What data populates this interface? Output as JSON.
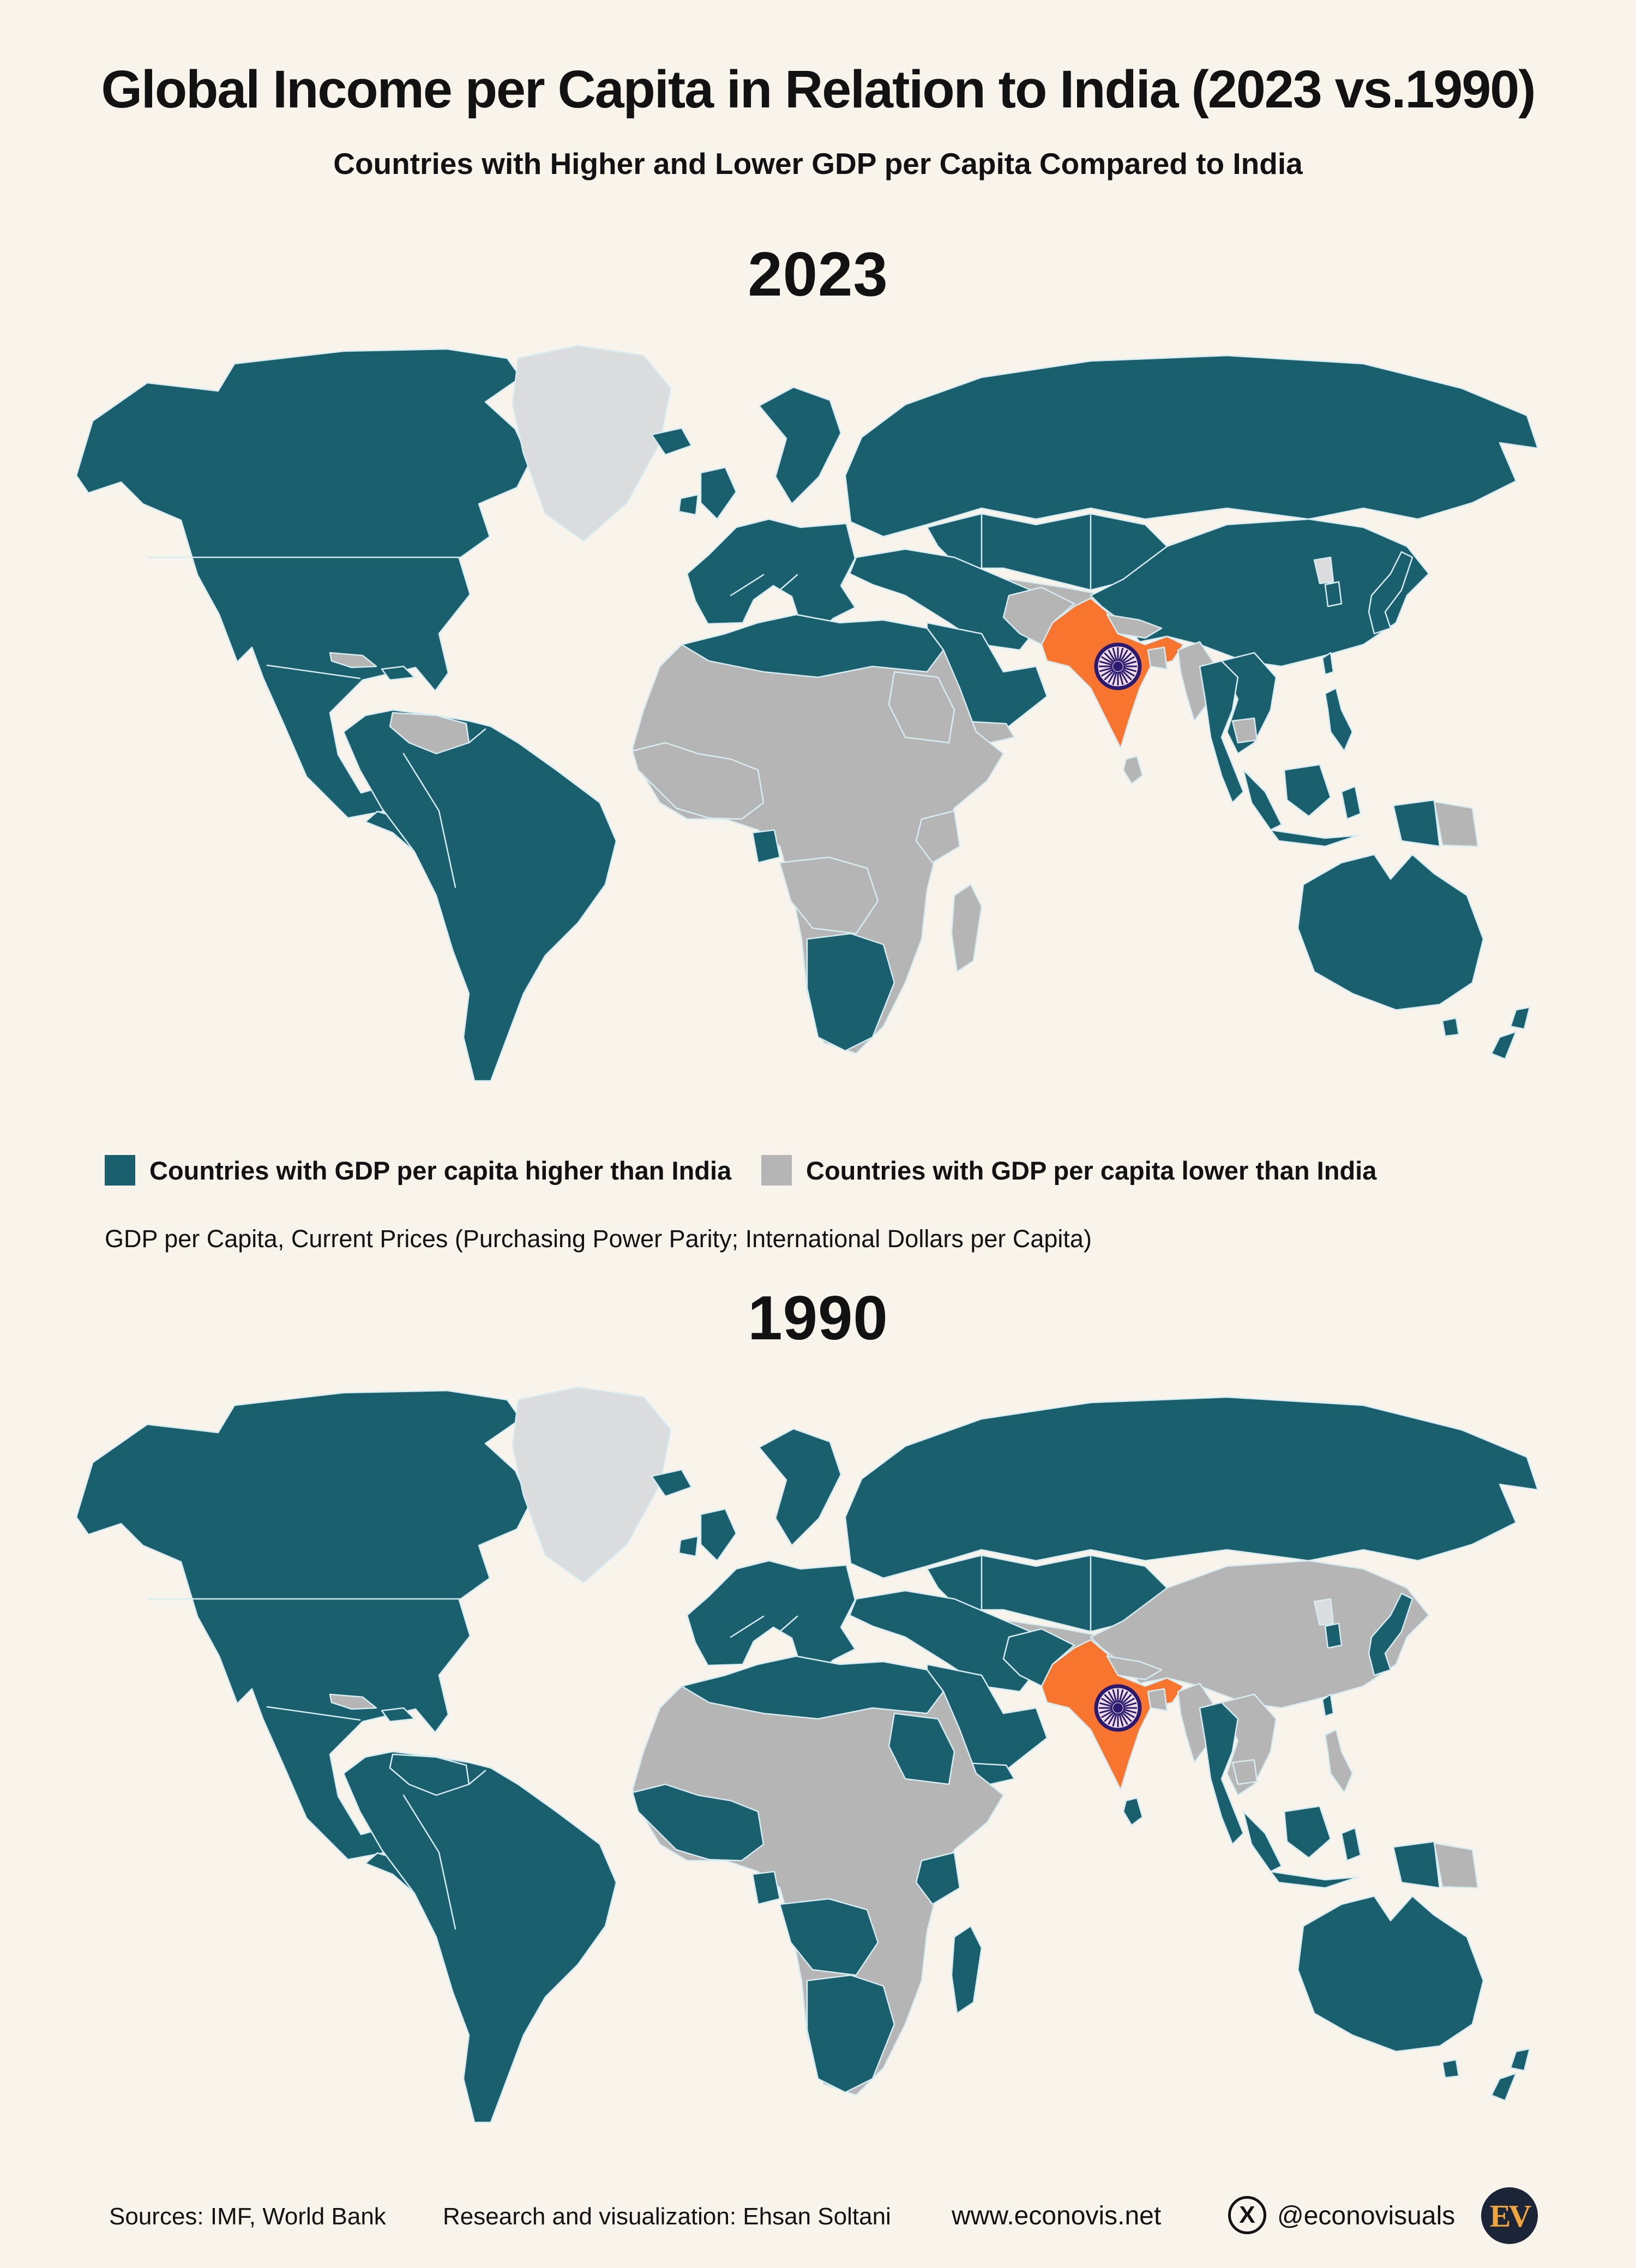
{
  "header": {
    "title": "Global Income per Capita in Relation to India (2023 vs.1990)",
    "subtitle": "Countries with Higher and Lower GDP per Capita Compared to India"
  },
  "sections": [
    {
      "year_label": "2023"
    },
    {
      "year_label": "1990"
    }
  ],
  "legend": {
    "items": [
      {
        "key": "higher",
        "label": "Countries with GDP per capita higher than India"
      },
      {
        "key": "lower",
        "label": "Countries with GDP per capita lower than India"
      }
    ],
    "note": "GDP per Capita, Current Prices (Purchasing Power Parity; International Dollars per Capita)"
  },
  "footer": {
    "sources": "Sources: IMF, World Bank",
    "credit": "Research and visualization: Ehsan Soltani",
    "website": "www.econovis.net",
    "social_icon": "X",
    "social_handle": "@econovisuals",
    "logo_text": "EV"
  },
  "theme": {
    "background": "#F8F4EB",
    "text": "#121212",
    "logo-bg": "#1B2537",
    "logo-text": "#EFA43E"
  },
  "chart_data": {
    "type": "choropleth",
    "title": "Global Income per Capita in Relation to India (2023 vs.1990)",
    "maps_compared": [
      "2023",
      "1990"
    ],
    "categories": {
      "higher": "GDP per capita higher than India",
      "lower": "GDP per capita lower than India",
      "india": "India (reference country, shown in orange with Ashoka Chakra)",
      "no_data": "No data (light gray: Greenland, North Korea)"
    },
    "colors": {
      "higher": "#1A5F6E",
      "lower": "#B5B5B5",
      "no_data": "#DBDCDD",
      "india": "#F8752F",
      "chakra": "#2A1A70",
      "chakra_face": "#F3DEE6",
      "border": "#D6ECF1"
    },
    "legend_position": "below first map, horizontal",
    "regions": [
      {
        "id": "greenland",
        "label": "Greenland",
        "cls_2023": "no_data",
        "cls_1990": "no_data"
      },
      {
        "id": "north-america",
        "label": "North America (Canada, USA, Mexico)",
        "cls_2023": "higher",
        "cls_1990": "higher"
      },
      {
        "id": "central-america",
        "label": "Central America",
        "cls_2023": "higher",
        "cls_1990": "higher"
      },
      {
        "id": "honduras-nicaragua",
        "label": "Honduras / Nicaragua",
        "cls_2023": "lower",
        "cls_1990": "higher"
      },
      {
        "id": "cuba",
        "label": "Cuba",
        "cls_2023": "lower",
        "cls_1990": "lower"
      },
      {
        "id": "hispaniola",
        "label": "Hispaniola (Dominican Republic)",
        "cls_2023": "higher",
        "cls_1990": "higher"
      },
      {
        "id": "south-america",
        "label": "South America",
        "cls_2023": "higher",
        "cls_1990": "higher"
      },
      {
        "id": "venezuela",
        "label": "Venezuela",
        "cls_2023": "lower",
        "cls_1990": "higher"
      },
      {
        "id": "europe",
        "label": "Europe",
        "cls_2023": "higher",
        "cls_1990": "higher"
      },
      {
        "id": "russia",
        "label": "Russia",
        "cls_2023": "higher",
        "cls_1990": "higher"
      },
      {
        "id": "central-asia",
        "label": "Kazakhstan & Central Asia",
        "cls_2023": "higher",
        "cls_1990": "higher"
      },
      {
        "id": "turkmen-afghan",
        "label": "Afghanistan / Turkmen area",
        "cls_2023": "lower",
        "cls_1990": "lower"
      },
      {
        "id": "middle-east",
        "label": "Middle East (Turkey, Iran, Arabia)",
        "cls_2023": "higher",
        "cls_1990": "higher"
      },
      {
        "id": "yemen",
        "label": "Yemen",
        "cls_2023": "lower",
        "cls_1990": "higher"
      },
      {
        "id": "africa",
        "label": "Sub-Saharan Africa (most countries)",
        "cls_2023": "lower",
        "cls_1990": "lower"
      },
      {
        "id": "africa-north",
        "label": "North Africa (Morocco to Egypt)",
        "cls_2023": "higher",
        "cls_1990": "higher"
      },
      {
        "id": "africa-west",
        "label": "West Africa coast (Senegal to Cameroon)",
        "cls_2023": "lower",
        "cls_1990": "higher"
      },
      {
        "id": "africa-sudan",
        "label": "Sudan",
        "cls_2023": "lower",
        "cls_1990": "higher"
      },
      {
        "id": "africa-kenya",
        "label": "Kenya",
        "cls_2023": "lower",
        "cls_1990": "higher"
      },
      {
        "id": "africa-gabon",
        "label": "Gabon",
        "cls_2023": "higher",
        "cls_1990": "higher"
      },
      {
        "id": "africa-angola-zambia",
        "label": "Angola / Zambia / Zimbabwe",
        "cls_2023": "lower",
        "cls_1990": "higher"
      },
      {
        "id": "africa-southern",
        "label": "Southern Africa (Namibia, Botswana, South Africa)",
        "cls_2023": "higher",
        "cls_1990": "higher"
      },
      {
        "id": "madagascar",
        "label": "Madagascar",
        "cls_2023": "lower",
        "cls_1990": "higher"
      },
      {
        "id": "india",
        "label": "India",
        "cls_2023": "india",
        "cls_1990": "india"
      },
      {
        "id": "pakistan",
        "label": "Pakistan",
        "cls_2023": "lower",
        "cls_1990": "higher"
      },
      {
        "id": "nepal-bhutan",
        "label": "Nepal / Bhutan",
        "cls_2023": "lower",
        "cls_1990": "lower"
      },
      {
        "id": "bangladesh",
        "label": "Bangladesh",
        "cls_2023": "lower",
        "cls_1990": "lower"
      },
      {
        "id": "sri-lanka",
        "label": "Sri Lanka",
        "cls_2023": "lower",
        "cls_1990": "higher"
      },
      {
        "id": "myanmar",
        "label": "Myanmar",
        "cls_2023": "lower",
        "cls_1990": "lower"
      },
      {
        "id": "thailand-malaysia",
        "label": "Thailand / Malaysia",
        "cls_2023": "higher",
        "cls_1990": "higher"
      },
      {
        "id": "indochina",
        "label": "Vietnam / Laos",
        "cls_2023": "higher",
        "cls_1990": "lower"
      },
      {
        "id": "cambodia",
        "label": "Cambodia",
        "cls_2023": "lower",
        "cls_1990": "lower"
      },
      {
        "id": "china",
        "label": "China (incl. Mongolia area)",
        "cls_2023": "higher",
        "cls_1990": "lower"
      },
      {
        "id": "taiwan",
        "label": "Taiwan",
        "cls_2023": "higher",
        "cls_1990": "higher"
      },
      {
        "id": "north-korea",
        "label": "North Korea",
        "cls_2023": "no_data",
        "cls_1990": "no_data"
      },
      {
        "id": "korea-japan",
        "label": "South Korea / Japan",
        "cls_2023": "higher",
        "cls_1990": "higher"
      },
      {
        "id": "philippines",
        "label": "Philippines",
        "cls_2023": "higher",
        "cls_1990": "lower"
      },
      {
        "id": "indonesia",
        "label": "Indonesia / Malaysia islands",
        "cls_2023": "higher",
        "cls_1990": "higher"
      },
      {
        "id": "papua-new-guinea",
        "label": "Papua New Guinea",
        "cls_2023": "lower",
        "cls_1990": "lower"
      },
      {
        "id": "australia",
        "label": "Australia",
        "cls_2023": "higher",
        "cls_1990": "higher"
      },
      {
        "id": "new-zealand",
        "label": "New Zealand",
        "cls_2023": "higher",
        "cls_1990": "higher"
      }
    ]
  }
}
